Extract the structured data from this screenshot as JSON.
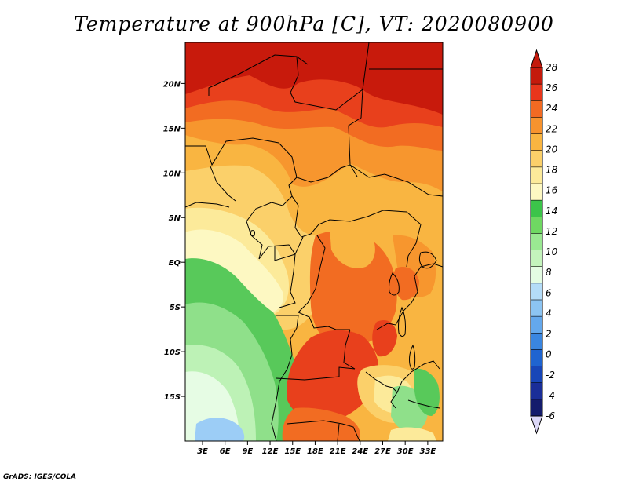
{
  "title": "Temperature at 900hPa [C], VT: 2020080900",
  "credit": "GrADS: IGES/COLA",
  "map": {
    "lat_ticks": [
      "20N",
      "15N",
      "10N",
      "5N",
      "EQ",
      "5S",
      "10S",
      "15S"
    ],
    "lat_values": [
      20,
      15,
      10,
      5,
      0,
      -5,
      -10,
      -15
    ],
    "lon_ticks": [
      "3E",
      "6E",
      "9E",
      "12E",
      "15E",
      "18E",
      "21E",
      "24E",
      "27E",
      "30E",
      "33E"
    ],
    "lon_values": [
      3,
      6,
      9,
      12,
      15,
      18,
      21,
      24,
      27,
      30,
      33
    ]
  },
  "colorbar": {
    "labels": [
      "28",
      "26",
      "24",
      "22",
      "20",
      "18",
      "16",
      "14",
      "12",
      "10",
      "8",
      "6",
      "4",
      "2",
      "0",
      "-2",
      "-4",
      "-6"
    ],
    "colors": [
      "#c41a0c",
      "#e8361c",
      "#f26a22",
      "#f7932e",
      "#f9b541",
      "#fbd06a",
      "#fcea9a",
      "#fdf8c2",
      "#3cc44a",
      "#6fd862",
      "#9ae892",
      "#c4f4bc",
      "#e4fce2",
      "#b4dcf8",
      "#8cc4f2",
      "#64a8ec",
      "#3a86e0",
      "#1f64d0",
      "#1846b8",
      "#1a2e98",
      "#141c6c"
    ],
    "top_color": "#c41a0c",
    "bottom_color": "#dcd8f8"
  },
  "field_colors": {
    "red": "#c81a0c",
    "orange_red": "#e8401c",
    "orange": "#f26c22",
    "light_orange": "#f7962e",
    "amber": "#f9b541",
    "yellow": "#fbd06a",
    "pale_yellow": "#fcea9a",
    "cream": "#fdf8c2",
    "green": "#58c95a",
    "light_green": "#8fe08a",
    "pale_green": "#bdf2b6",
    "very_pale_green": "#e6fce4",
    "light_blue": "#9ccdf6"
  }
}
